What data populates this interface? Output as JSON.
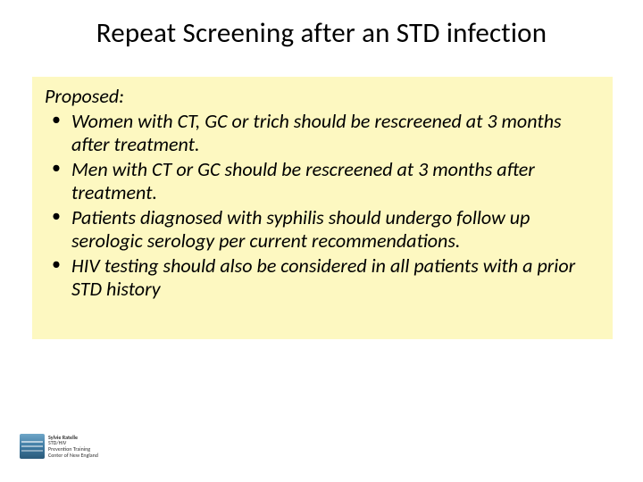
{
  "slide": {
    "title": "Repeat Screening after an STD infection",
    "title_fontsize": 31,
    "title_color": "#000000",
    "background_color": "#ffffff"
  },
  "content_box": {
    "background_color": "#fdf8c1",
    "label": "Proposed:",
    "label_fontstyle": "italic",
    "bullet_fontstyle": "italic",
    "body_fontsize": 22,
    "body_color": "#000000",
    "bullets": [
      "Women with CT, GC or trich should be rescreened at 3 months after treatment.",
      "Men with CT or GC should be rescreened at 3 months after treatment.",
      "Patients diagnosed with syphilis should undergo follow up serologic serology per current recommendations.",
      "HIV testing should also be considered in all patients with a prior STD history"
    ]
  },
  "footer": {
    "logo_name": "Sylvie Ratelle",
    "logo_line2": "STD/HIV",
    "logo_line3": "Prevention Training",
    "logo_line4": "Center of New England",
    "logo_color": "#3f7ba3"
  }
}
